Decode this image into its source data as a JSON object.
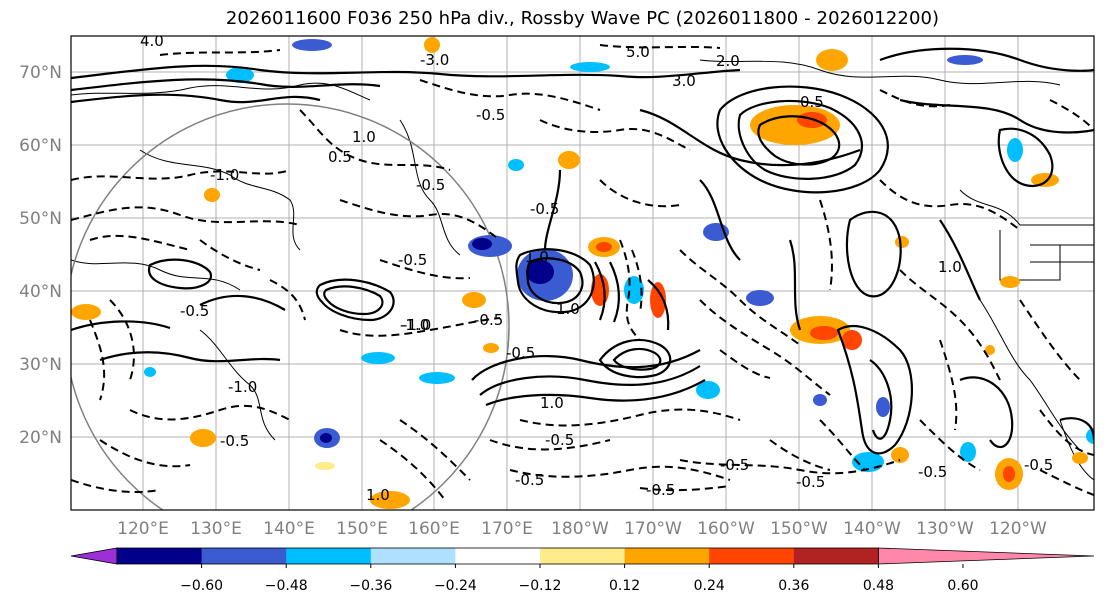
{
  "title": "2026011600 F036 250 hPa div., Rossby Wave PC (2026011800 - 2026012200)",
  "lat_labels": [
    "70°N",
    "60°N",
    "50°N",
    "40°N",
    "30°N",
    "20°N"
  ],
  "lon_labels": [
    "120°E",
    "130°E",
    "140°E",
    "150°E",
    "160°E",
    "170°E",
    "180°W",
    "170°W",
    "160°W",
    "150°W",
    "140°W",
    "130°W",
    "120°W"
  ],
  "colorbar": {
    "colors": [
      "#9b30d9",
      "#00008b",
      "#3a5bd1",
      "#00bfff",
      "#b0e0ff",
      "#ffffff",
      "#ffeb8a",
      "#ffa500",
      "#ff4500",
      "#b22222",
      "#ff88aa"
    ],
    "tick_labels": [
      "−0.60",
      "−0.48",
      "−0.36",
      "−0.24",
      "−0.12",
      "0.12",
      "0.24",
      "0.36",
      "0.48",
      "0.60"
    ]
  },
  "contour_labels": [
    "4.0",
    "5.0",
    "-3.0",
    "2.0",
    "3.0",
    "0.5",
    "1.0",
    "-0.5",
    "-1.0",
    "-0.5",
    "1.0",
    "-0.5",
    "-1.0",
    "-0.5",
    "1.0",
    "-0.5",
    "1.0",
    "-0.5",
    "-0.5",
    "-0.5",
    "-1.0",
    "1.0",
    "-0.5",
    "-1.0",
    "-0.5",
    "-0.5",
    "-0.5",
    "-0.5",
    "-0.5",
    "0.5",
    "1.0",
    "-0.5"
  ]
}
